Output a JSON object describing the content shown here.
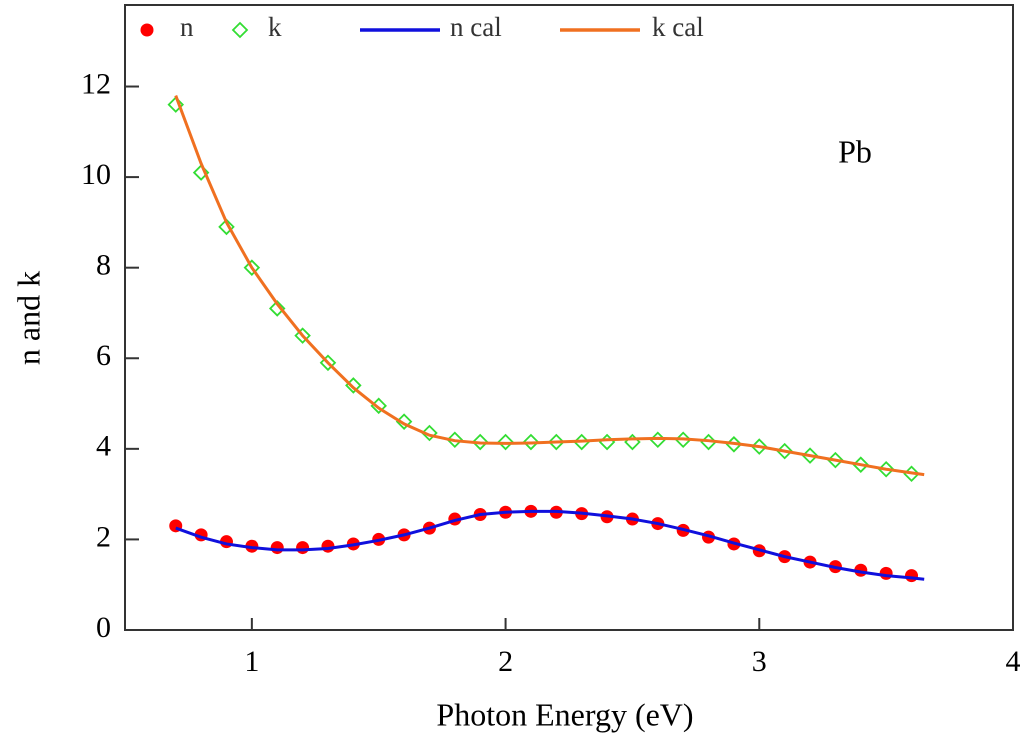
{
  "chart_data": {
    "type": "scatter",
    "xlabel": "Photon Energy (eV)",
    "ylabel": "n and k",
    "annotation": "Pb",
    "xlim": [
      0.5,
      4.0
    ],
    "xticks": [
      1,
      2,
      3,
      4
    ],
    "ylim": [
      0,
      13.8
    ],
    "yticks": [
      0,
      2,
      4,
      6,
      8,
      10,
      12
    ],
    "series": [
      {
        "name": "n",
        "mark": "circle",
        "color": "#ff0000",
        "x": [
          0.7,
          0.8,
          0.9,
          1.0,
          1.1,
          1.2,
          1.3,
          1.4,
          1.5,
          1.6,
          1.7,
          1.8,
          1.9,
          2.0,
          2.1,
          2.2,
          2.3,
          2.4,
          2.5,
          2.6,
          2.7,
          2.8,
          2.9,
          3.0,
          3.1,
          3.2,
          3.3,
          3.4,
          3.5,
          3.6
        ],
        "values": [
          2.3,
          2.1,
          1.95,
          1.85,
          1.82,
          1.82,
          1.85,
          1.9,
          2.0,
          2.1,
          2.25,
          2.45,
          2.55,
          2.6,
          2.62,
          2.6,
          2.57,
          2.5,
          2.45,
          2.35,
          2.2,
          2.05,
          1.9,
          1.75,
          1.62,
          1.5,
          1.4,
          1.32,
          1.25,
          1.2
        ]
      },
      {
        "name": "k",
        "mark": "diamond",
        "color": "#33dd33",
        "x": [
          0.7,
          0.8,
          0.9,
          1.0,
          1.1,
          1.2,
          1.3,
          1.4,
          1.5,
          1.6,
          1.7,
          1.8,
          1.9,
          2.0,
          2.1,
          2.2,
          2.3,
          2.4,
          2.5,
          2.6,
          2.7,
          2.8,
          2.9,
          3.0,
          3.1,
          3.2,
          3.3,
          3.4,
          3.5,
          3.6
        ],
        "values": [
          11.6,
          10.1,
          8.9,
          8.0,
          7.1,
          6.5,
          5.9,
          5.4,
          4.95,
          4.6,
          4.35,
          4.2,
          4.15,
          4.15,
          4.15,
          4.15,
          4.15,
          4.15,
          4.15,
          4.2,
          4.2,
          4.15,
          4.1,
          4.05,
          3.95,
          3.85,
          3.75,
          3.65,
          3.55,
          3.45
        ]
      },
      {
        "name": "n cal",
        "mark": "line",
        "color": "#1010dd",
        "x": [
          0.7,
          0.8,
          0.9,
          1.0,
          1.1,
          1.2,
          1.3,
          1.4,
          1.5,
          1.6,
          1.7,
          1.8,
          1.9,
          2.0,
          2.1,
          2.2,
          2.3,
          2.4,
          2.5,
          2.6,
          2.7,
          2.8,
          2.9,
          3.0,
          3.1,
          3.2,
          3.3,
          3.4,
          3.5,
          3.6,
          3.65
        ],
        "values": [
          2.25,
          2.05,
          1.9,
          1.82,
          1.77,
          1.77,
          1.8,
          1.88,
          1.98,
          2.1,
          2.25,
          2.42,
          2.55,
          2.6,
          2.62,
          2.62,
          2.58,
          2.52,
          2.45,
          2.35,
          2.22,
          2.08,
          1.92,
          1.77,
          1.62,
          1.5,
          1.38,
          1.28,
          1.2,
          1.15,
          1.12
        ]
      },
      {
        "name": "k cal",
        "mark": "line",
        "color": "#f07020",
        "x": [
          0.7,
          0.8,
          0.9,
          1.0,
          1.1,
          1.2,
          1.3,
          1.4,
          1.5,
          1.6,
          1.7,
          1.8,
          1.9,
          2.0,
          2.1,
          2.2,
          2.3,
          2.4,
          2.5,
          2.6,
          2.7,
          2.8,
          2.9,
          3.0,
          3.1,
          3.2,
          3.3,
          3.4,
          3.5,
          3.6,
          3.65
        ],
        "values": [
          11.8,
          10.3,
          9.0,
          8.0,
          7.2,
          6.5,
          5.9,
          5.35,
          4.9,
          4.55,
          4.3,
          4.18,
          4.13,
          4.12,
          4.13,
          4.15,
          4.17,
          4.2,
          4.22,
          4.23,
          4.22,
          4.18,
          4.12,
          4.05,
          3.95,
          3.85,
          3.75,
          3.65,
          3.55,
          3.47,
          3.43
        ]
      }
    ]
  }
}
